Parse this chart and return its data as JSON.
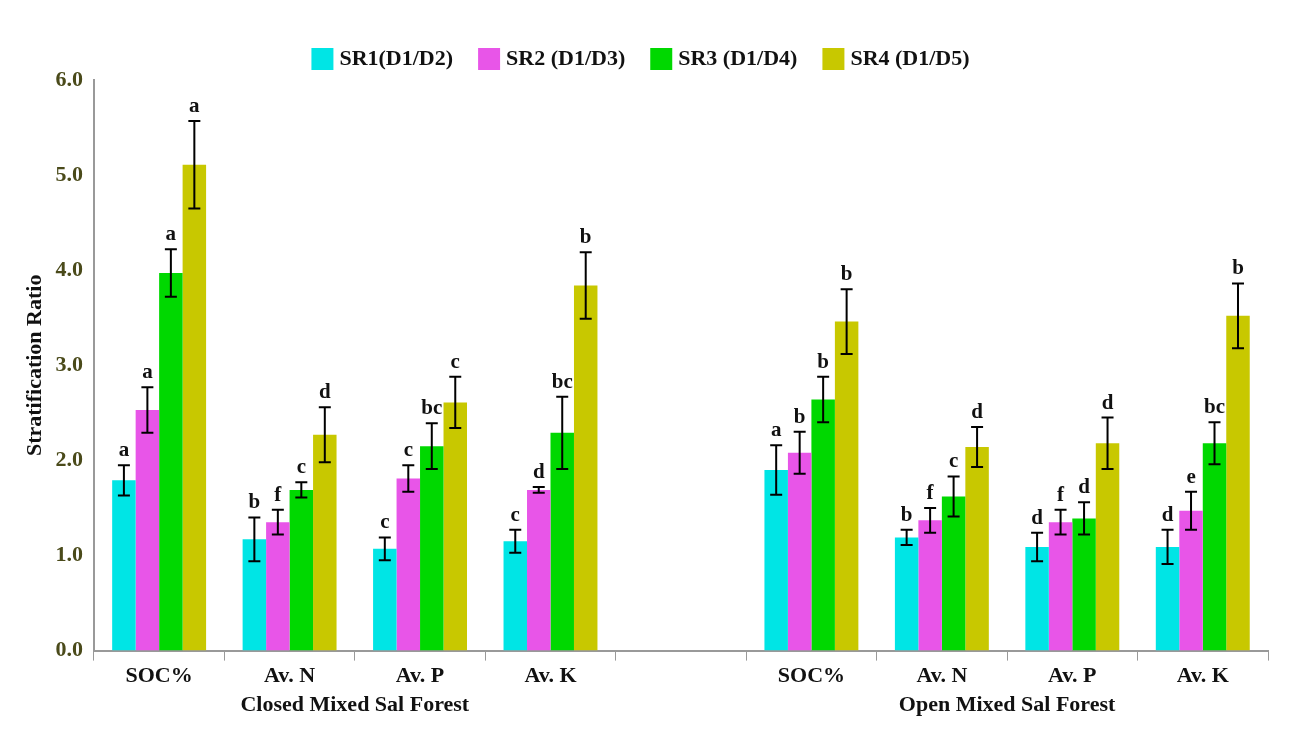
{
  "chart_data": {
    "type": "bar",
    "ylabel": "Stratification Ratio",
    "categories": [
      "SOC%",
      "Av. N",
      "Av. P",
      "Av. K",
      null,
      "SOC%",
      "Av. N",
      "Av. P",
      "Av. K"
    ],
    "series": [
      {
        "name": "SR1(D1/D2)",
        "color": "#00e5e5",
        "values": [
          1.79,
          1.17,
          1.07,
          1.15,
          null,
          1.9,
          1.19,
          1.09,
          1.09
        ],
        "errors": [
          0.16,
          0.23,
          0.12,
          0.12,
          null,
          0.26,
          0.08,
          0.15,
          0.18
        ],
        "value_labels": [
          "a",
          "b",
          "c",
          "c",
          null,
          "a",
          "b",
          "d",
          "d"
        ]
      },
      {
        "name": "SR2 (D1/D3)",
        "color": "#e855e8",
        "values": [
          2.53,
          1.35,
          1.81,
          1.69,
          null,
          2.08,
          1.37,
          1.35,
          1.47
        ],
        "errors": [
          0.24,
          0.13,
          0.14,
          0.03,
          null,
          0.22,
          0.13,
          0.13,
          0.2
        ],
        "value_labels": [
          "a",
          "f",
          "c",
          "d",
          null,
          "b",
          "f",
          "f",
          "e"
        ]
      },
      {
        "name": "SR3 (D1/D4)",
        "color": "#00d800",
        "values": [
          3.97,
          1.69,
          2.15,
          2.29,
          null,
          2.64,
          1.62,
          1.39,
          2.18
        ],
        "errors": [
          0.25,
          0.08,
          0.24,
          0.38,
          null,
          0.24,
          0.21,
          0.17,
          0.22
        ],
        "value_labels": [
          "a",
          "c",
          "bc",
          "bc",
          null,
          "b",
          "c",
          "d",
          "bc"
        ]
      },
      {
        "name": "SR4 (D1/D5)",
        "color": "#c8c800",
        "values": [
          5.11,
          2.27,
          2.61,
          3.84,
          null,
          3.46,
          2.14,
          2.18,
          3.52
        ],
        "errors": [
          0.46,
          0.29,
          0.27,
          0.35,
          null,
          0.34,
          0.21,
          0.27,
          0.34
        ],
        "value_labels": [
          "a",
          "d",
          "c",
          "b",
          null,
          "b",
          "d",
          "d",
          "b"
        ]
      }
    ],
    "ylim": [
      0,
      6
    ],
    "yticks": [
      {
        "value": 0,
        "label": "0.0"
      },
      {
        "value": 1,
        "label": "1.0"
      },
      {
        "value": 2,
        "label": "2.0"
      },
      {
        "value": 3,
        "label": "3.0"
      },
      {
        "value": 4,
        "label": "4.0"
      },
      {
        "value": 5,
        "label": "5.0"
      },
      {
        "value": 6,
        "label": "6.0"
      }
    ],
    "legend": "top",
    "annotations": [
      "Closed Mixed Sal Forest",
      "Open Mixed Sal Forest"
    ]
  }
}
